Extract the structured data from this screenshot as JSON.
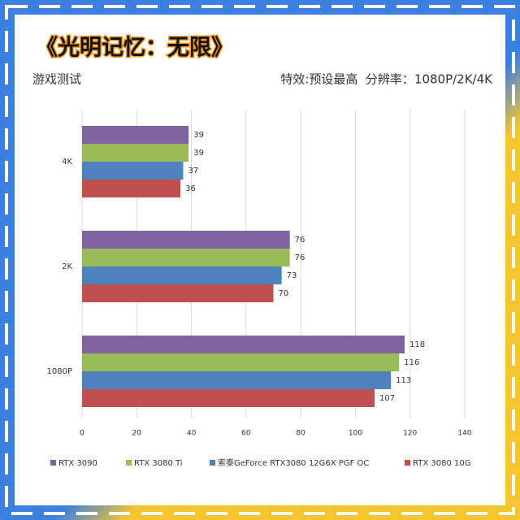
{
  "chart_data": {
    "type": "hbar",
    "title": "《光明记忆：无限》",
    "subtitle": "游戏测试",
    "annotation": "特效:预设最高  分辨率：1080P/2K/4K",
    "categories": [
      "4K",
      "2K",
      "1080P"
    ],
    "series": [
      {
        "name": "RTX 3090",
        "color": "#8064a2",
        "values": [
          39,
          76,
          118
        ]
      },
      {
        "name": "RTX 3080 Ti",
        "color": "#9bbb59",
        "values": [
          39,
          76,
          116
        ]
      },
      {
        "name": "索泰GeForce RTX3080 12G6X PGF OC",
        "color": "#4f81bd",
        "values": [
          37,
          73,
          113
        ]
      },
      {
        "name": "RTX 3080 10G",
        "color": "#c0504d",
        "values": [
          36,
          70,
          107
        ]
      }
    ],
    "xlim": [
      0,
      140
    ],
    "xticks": [
      0,
      20,
      40,
      60,
      80,
      100,
      120,
      140
    ],
    "grid": true
  }
}
